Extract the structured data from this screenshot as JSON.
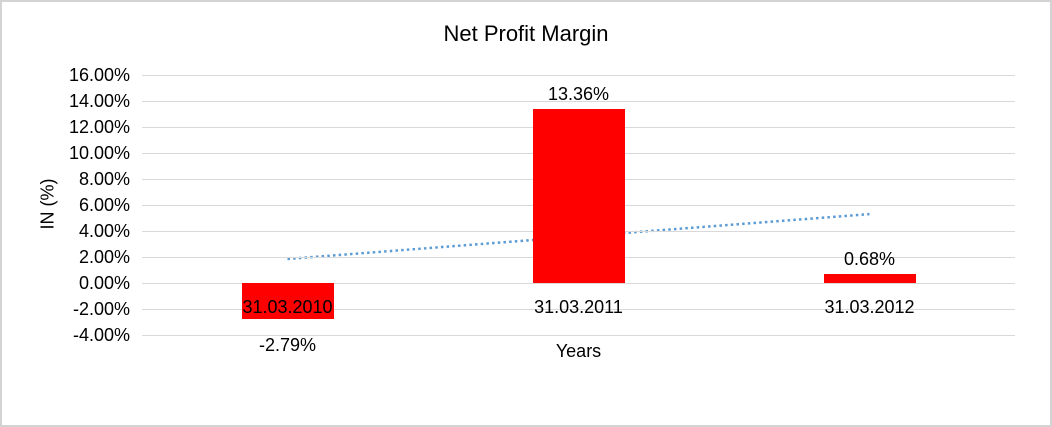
{
  "chart_data": {
    "type": "bar",
    "title": "Net Profit Margin",
    "xlabel": "Years",
    "ylabel": "IN (%)",
    "categories": [
      "31.03.2010",
      "31.03.2011",
      "31.03.2012"
    ],
    "values": [
      -2.79,
      13.36,
      0.68
    ],
    "value_labels": [
      "-2.79%",
      "13.36%",
      "0.68%"
    ],
    "ylim": [
      -4,
      16
    ],
    "yticks": [
      {
        "value": 16,
        "label": "16.00%"
      },
      {
        "value": 14,
        "label": "14.00%"
      },
      {
        "value": 12,
        "label": "12.00%"
      },
      {
        "value": 10,
        "label": "10.00%"
      },
      {
        "value": 8,
        "label": "8.00%"
      },
      {
        "value": 6,
        "label": "6.00%"
      },
      {
        "value": 4,
        "label": "4.00%"
      },
      {
        "value": 2,
        "label": "2.00%"
      },
      {
        "value": 0,
        "label": "0.00%"
      },
      {
        "value": -2,
        "label": "-2.00%"
      },
      {
        "value": -4,
        "label": "-4.00%"
      }
    ],
    "grid": true,
    "legend": "none",
    "bar_color": "#ff0000",
    "trendline": {
      "type": "linear",
      "style": "dotted",
      "color": "#5b9bd5",
      "start_value": 1.85,
      "end_value": 5.3
    }
  },
  "colors": {
    "background": "#ffffff",
    "border": "#d3d3d3",
    "gridline": "#d9d9d9",
    "text": "#000000"
  }
}
